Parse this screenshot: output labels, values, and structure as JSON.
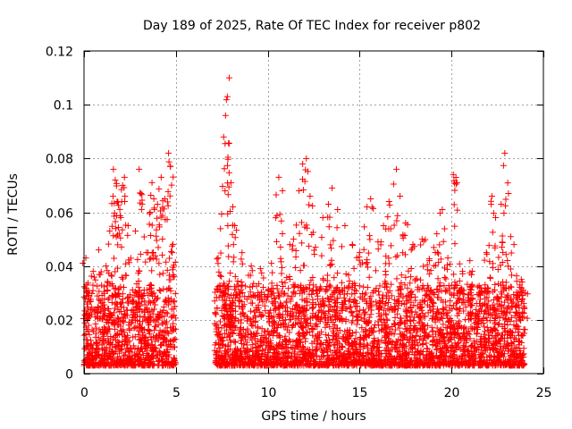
{
  "chart_data": {
    "type": "scatter",
    "title": "Day 189 of 2025, Rate Of TEC Index for receiver p802",
    "xlabel": "GPS time / hours",
    "ylabel": "ROTI / TECUs",
    "xlim": [
      0,
      25
    ],
    "ylim": [
      0,
      0.12
    ],
    "x_ticks": [
      0,
      5,
      10,
      15,
      20,
      25
    ],
    "x_tick_labels": [
      "0",
      "5",
      "10",
      "15",
      "20",
      "25"
    ],
    "y_ticks": [
      0,
      0.02,
      0.04,
      0.06,
      0.08,
      0.1,
      0.12
    ],
    "y_tick_labels": [
      "0",
      "0.02",
      "0.04",
      "0.06",
      "0.08",
      "0.1",
      "0.12"
    ],
    "grid": true,
    "marker": "+",
    "color": "#ff0000",
    "data_gap_hours": [
      5.0,
      7.1
    ],
    "series": [
      {
        "name": "ROTI",
        "description": "ROTI samples, dense cloud mostly between 0.003 and 0.03 TECU/s",
        "points": [
          [
            0.1,
            0.043
          ],
          [
            0.2,
            0.03
          ],
          [
            0.5,
            0.038
          ],
          [
            0.8,
            0.046
          ],
          [
            1.2,
            0.04
          ],
          [
            1.4,
            0.053
          ],
          [
            1.6,
            0.076
          ],
          [
            1.7,
            0.072
          ],
          [
            1.8,
            0.064
          ],
          [
            2.0,
            0.058
          ],
          [
            2.1,
            0.07
          ],
          [
            2.2,
            0.073
          ],
          [
            2.4,
            0.055
          ],
          [
            2.8,
            0.053
          ],
          [
            3.0,
            0.076
          ],
          [
            3.1,
            0.067
          ],
          [
            3.4,
            0.045
          ],
          [
            3.6,
            0.06
          ],
          [
            3.7,
            0.071
          ],
          [
            3.8,
            0.065
          ],
          [
            4.0,
            0.063
          ],
          [
            4.2,
            0.073
          ],
          [
            4.4,
            0.065
          ],
          [
            4.6,
            0.082
          ],
          [
            4.7,
            0.077
          ],
          [
            4.8,
            0.045
          ],
          [
            7.3,
            0.043
          ],
          [
            7.6,
            0.088
          ],
          [
            7.7,
            0.096
          ],
          [
            7.8,
            0.103
          ],
          [
            7.9,
            0.11
          ],
          [
            8.0,
            0.071
          ],
          [
            8.1,
            0.062
          ],
          [
            8.2,
            0.055
          ],
          [
            8.6,
            0.045
          ],
          [
            9.1,
            0.04
          ],
          [
            9.6,
            0.039
          ],
          [
            10.2,
            0.041
          ],
          [
            10.6,
            0.073
          ],
          [
            10.8,
            0.068
          ],
          [
            11.2,
            0.048
          ],
          [
            11.4,
            0.05
          ],
          [
            11.7,
            0.068
          ],
          [
            11.9,
            0.078
          ],
          [
            12.1,
            0.08
          ],
          [
            12.3,
            0.066
          ],
          [
            12.6,
            0.047
          ],
          [
            13.0,
            0.058
          ],
          [
            13.3,
            0.063
          ],
          [
            13.5,
            0.069
          ],
          [
            13.8,
            0.061
          ],
          [
            14.2,
            0.055
          ],
          [
            14.6,
            0.048
          ],
          [
            15.0,
            0.045
          ],
          [
            15.4,
            0.062
          ],
          [
            15.6,
            0.065
          ],
          [
            16.0,
            0.049
          ],
          [
            16.3,
            0.055
          ],
          [
            16.6,
            0.064
          ],
          [
            17.0,
            0.076
          ],
          [
            17.2,
            0.066
          ],
          [
            17.5,
            0.056
          ],
          [
            17.9,
            0.048
          ],
          [
            18.4,
            0.05
          ],
          [
            18.8,
            0.042
          ],
          [
            19.2,
            0.052
          ],
          [
            19.5,
            0.061
          ],
          [
            19.8,
            0.043
          ],
          [
            20.1,
            0.074
          ],
          [
            20.3,
            0.071
          ],
          [
            20.6,
            0.038
          ],
          [
            21.0,
            0.042
          ],
          [
            21.5,
            0.03
          ],
          [
            21.9,
            0.045
          ],
          [
            22.2,
            0.066
          ],
          [
            22.4,
            0.058
          ],
          [
            22.7,
            0.063
          ],
          [
            22.9,
            0.082
          ],
          [
            23.1,
            0.067
          ],
          [
            23.4,
            0.048
          ],
          [
            23.8,
            0.035
          ],
          [
            24.0,
            0.03
          ]
        ]
      }
    ]
  }
}
